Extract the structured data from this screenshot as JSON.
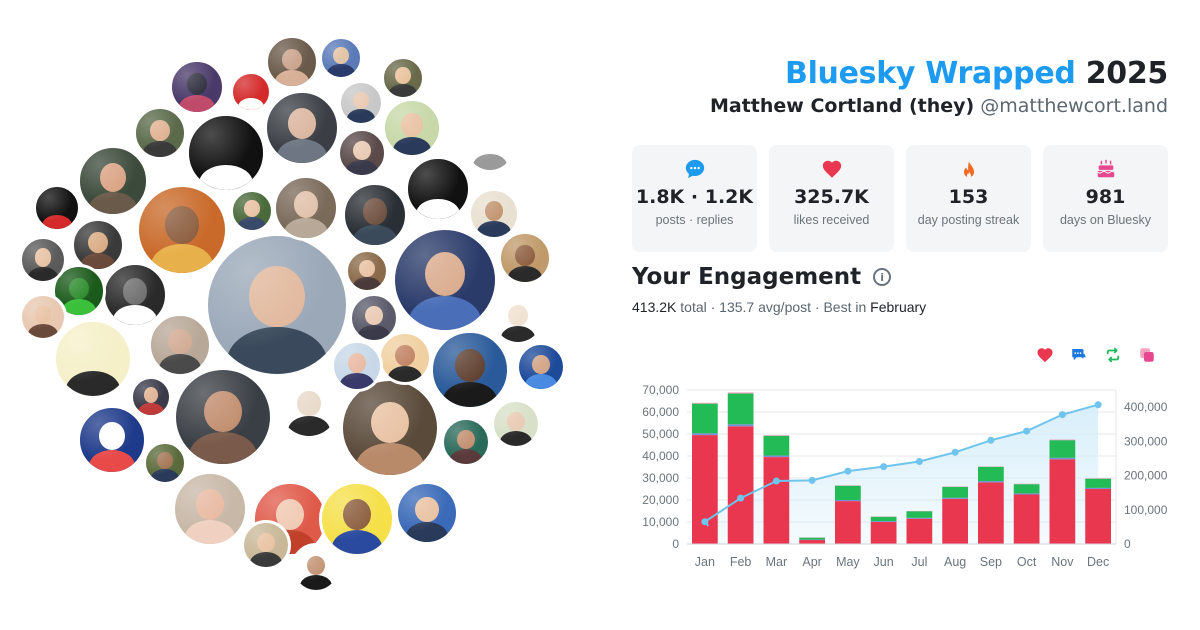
{
  "header": {
    "brand": "Bluesky Wrapped",
    "year": "2025",
    "display_name": "Matthew Cortland (they)",
    "handle": "@matthewcort.land"
  },
  "stats": [
    {
      "icon": "speech-bubble-icon",
      "value": "1.8K · 1.2K",
      "label": "posts · replies",
      "color": "#1d9bf0"
    },
    {
      "icon": "heart-icon",
      "value": "325.7K",
      "label": "likes received",
      "color": "#e8374f"
    },
    {
      "icon": "flame-icon",
      "value": "153",
      "label": "day posting streak",
      "color": "#f26a21"
    },
    {
      "icon": "cake-icon",
      "value": "981",
      "label": "days on Bluesky",
      "color": "#e6478f"
    }
  ],
  "engagement": {
    "title": "Your Engagement",
    "total_value": "413.2K",
    "total_label": "total",
    "avg_text": "· 135.7 avg/post · Best in",
    "best_month": "February"
  },
  "legend_icons": [
    {
      "icon": "heart-icon",
      "color": "#e8374f"
    },
    {
      "icon": "reply-icon",
      "color": "#1d78e0"
    },
    {
      "icon": "repost-icon",
      "color": "#1fb85a"
    },
    {
      "icon": "quote-icon",
      "color": "#e6478f"
    }
  ],
  "colors": {
    "likes": "#e8374f",
    "reposts": "#22bb55",
    "replies": "#7b8ed8",
    "quotes": "#f2a1bf",
    "cumulative_line": "#6ec4ec",
    "cumulative_fill": "#d6eefa"
  },
  "chart_data": {
    "type": "bar",
    "categories": [
      "Jan",
      "Feb",
      "Mar",
      "Apr",
      "May",
      "Jun",
      "Jul",
      "Aug",
      "Sep",
      "Oct",
      "Nov",
      "Dec"
    ],
    "series": [
      {
        "key": "likes",
        "values": [
          49500,
          53500,
          39500,
          1800,
          19500,
          10000,
          11500,
          20500,
          28000,
          22500,
          38500,
          25000
        ]
      },
      {
        "key": "replies",
        "values": [
          800,
          900,
          700,
          200,
          500,
          400,
          400,
          500,
          600,
          500,
          700,
          500
        ]
      },
      {
        "key": "reposts",
        "values": [
          13500,
          14000,
          9000,
          900,
          6500,
          2000,
          3000,
          5000,
          6500,
          4200,
          8000,
          4200
        ]
      },
      {
        "key": "quotes",
        "values": [
          400,
          500,
          300,
          100,
          200,
          150,
          150,
          200,
          200,
          200,
          300,
          200
        ]
      }
    ],
    "cumulative": [
      65000,
      134000,
      184000,
      186000,
      213000,
      226000,
      241000,
      268000,
      303000,
      330000,
      378000,
      407000
    ],
    "y_left": {
      "range": [
        0,
        70000
      ],
      "ticks": [
        "0",
        "10,000",
        "20,000",
        "30,000",
        "40,000",
        "50,000",
        "60,000",
        "70,000"
      ]
    },
    "y_right": {
      "range": [
        0,
        450000
      ],
      "ticks": [
        "0",
        "100,000",
        "200,000",
        "300,000",
        "400,000"
      ]
    },
    "grid": true
  }
}
